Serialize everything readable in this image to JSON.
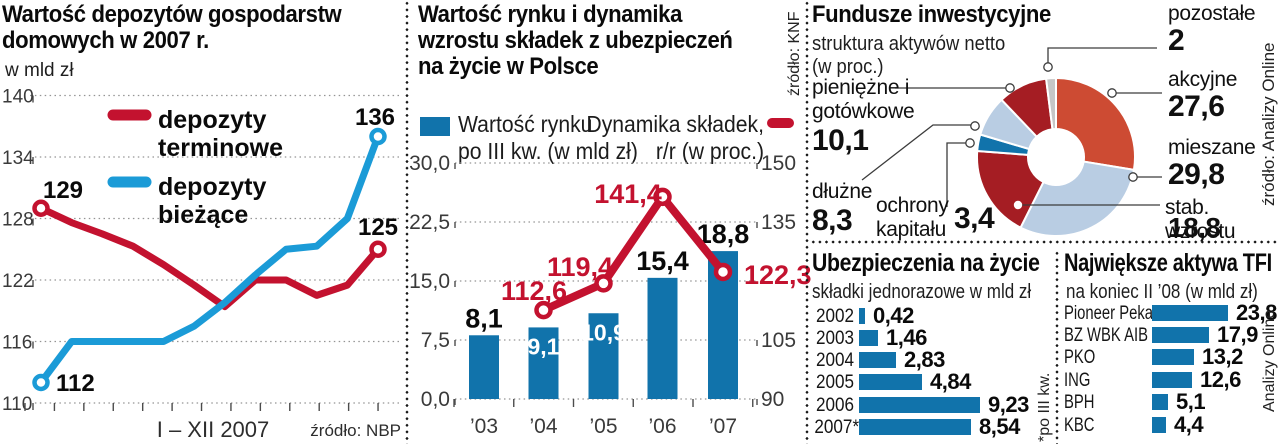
{
  "colors": {
    "red_line": "#c3122f",
    "blue_line": "#1b9bd7",
    "bar_blue": "#1173ab",
    "pie_dark_red": "#a51d23",
    "pie_orange": "#cd4b33",
    "pie_light_blue": "#b9cde3",
    "pie_gray": "#c6c6c6"
  },
  "panel_deposits": {
    "title_lines": [
      "Wartość depozytów gospodarstw",
      "domowych w 2007 r."
    ],
    "unit": "w mld zł",
    "legend": [
      [
        "depozyty",
        "terminowe"
      ],
      [
        "depozyty",
        "bieżące"
      ]
    ],
    "x_axis_label": "I – XII 2007",
    "source": "źródło: NBP"
  },
  "panel_insurance": {
    "title_lines": [
      "Wartość rynku i dynamika",
      "wzrostu składek z ubezpieczeń",
      "na życie w Polsce"
    ],
    "legend_bar_lines": [
      "Wartość rynku",
      "po III kw. (w mld zł)"
    ],
    "legend_line_lines": [
      "Dynamika składek,",
      "r/r (w proc.)"
    ],
    "source": "źródło: KNF"
  },
  "panel_funds": {
    "title": "Fundusze inwestycyjne",
    "subtitle_lines": [
      "struktura aktywów netto",
      "(w proc.)"
    ],
    "source": "źródło: Analizy Online"
  },
  "panel_life": {
    "title": "Ubezpieczenia na życie",
    "subtitle": "składki jednorazowe w mld zł",
    "footnote": "*po III kw."
  },
  "panel_tfi": {
    "title": "Największe aktywa TFI",
    "subtitle": "na koniec II ’08 (w mld zł)",
    "source": "Analizy Online"
  },
  "chart_data": [
    {
      "type": "line",
      "title": "Wartość depozytów gospodarstw domowych w 2007 r.",
      "ylabel": "w mld zł",
      "x_axis_label": "I – XII 2007",
      "source": "źródło: NBP",
      "ylim": [
        110,
        140
      ],
      "yticks": [
        110,
        116,
        122,
        128,
        134,
        140
      ],
      "x_count": 12,
      "grid": true,
      "series": [
        {
          "name": "depozyty terminowe",
          "color": "#c3122f",
          "values": [
            129,
            127.6,
            126.5,
            125.3,
            123.5,
            121.5,
            119.4,
            122,
            122,
            120.5,
            121.5,
            125
          ],
          "first_label": "129",
          "last_label": "125"
        },
        {
          "name": "depozyty bieżące",
          "color": "#1b9bd7",
          "values": [
            112,
            116,
            116,
            116,
            116,
            117.5,
            119.8,
            122.5,
            125,
            125.3,
            128,
            136
          ],
          "first_label": "112",
          "last_label": "136"
        }
      ]
    },
    {
      "type": "bar+line",
      "title": "Wartość rynku i dynamika wzrostu składek z ubezpieczeń na życie w Polsce",
      "source": "źródło: KNF",
      "categories": [
        "’03",
        "’04",
        "’05",
        "’06",
        "’07"
      ],
      "bars": {
        "name": "Wartość rynku po III kw. (w mld zł)",
        "color": "#1173ab",
        "values": [
          8.1,
          9.1,
          10.9,
          15.4,
          18.8
        ],
        "labels": [
          "8,1",
          "9,1",
          "10,9",
          "15,4",
          "18,8"
        ],
        "label_inside": [
          false,
          true,
          true,
          false,
          false
        ]
      },
      "line": {
        "name": "Dynamika składek, r/r (w proc.)",
        "color": "#c3122f",
        "x_index": [
          1,
          2,
          3,
          4
        ],
        "values": [
          112.6,
          119.4,
          141.4,
          122.3
        ],
        "labels": [
          "112,6",
          "119,4",
          "141,4",
          "122,3"
        ]
      },
      "left_axis": {
        "lim": [
          0,
          30
        ],
        "ticks": [
          {
            "v": 0,
            "t": "0,0"
          },
          {
            "v": 7.5,
            "t": "7,5"
          },
          {
            "v": 15,
            "t": "15,0"
          },
          {
            "v": 22.5,
            "t": "22,5"
          },
          {
            "v": 30,
            "t": "30,0"
          }
        ]
      },
      "right_axis": {
        "lim": [
          90,
          150
        ],
        "ticks": [
          {
            "v": 90,
            "t": "90"
          },
          {
            "v": 105,
            "t": "105"
          },
          {
            "v": 135,
            "t": "135"
          },
          {
            "v": 150,
            "t": "150"
          }
        ]
      }
    },
    {
      "type": "pie",
      "title": "Fundusze inwestycyjne",
      "subtitle": "struktura aktywów netto (w proc.)",
      "source": "źródło: Analizy Online",
      "donut": true,
      "start_angle_deg": 0,
      "clockwise": true,
      "segments": [
        {
          "label": "akcyjne",
          "value": 27.6,
          "value_label": "27,6",
          "color": "#cd4b33"
        },
        {
          "label": "mieszane",
          "value": 29.8,
          "value_label": "29,8",
          "color": "#b9cde3"
        },
        {
          "label": "stab. wzrostu",
          "value": 18.8,
          "value_label": "18,8",
          "color": "#a51d23"
        },
        {
          "label": "ochrony kapitału",
          "value": 3.4,
          "value_label": "3,4",
          "color": "#1173ab"
        },
        {
          "label": "dłużne",
          "value": 8.3,
          "value_label": "8,3",
          "color": "#b9cde3"
        },
        {
          "label": "pieniężne i gotówkowe",
          "value": 10.1,
          "value_label": "10,1",
          "color": "#a51d23"
        },
        {
          "label": "pozostałe",
          "value": 2.0,
          "value_label": "2",
          "color": "#c6c6c6"
        }
      ]
    },
    {
      "type": "bar",
      "orientation": "horizontal",
      "title": "Ubezpieczenia na życie",
      "subtitle": "składki jednorazowe w mld zł",
      "footnote": "*po III kw.",
      "color": "#1173ab",
      "categories": [
        "2002",
        "2003",
        "2004",
        "2005",
        "2006",
        "2007*"
      ],
      "values": [
        0.42,
        1.46,
        2.83,
        4.84,
        9.23,
        8.54
      ],
      "value_labels": [
        "0,42",
        "1,46",
        "2,83",
        "4,84",
        "9,23",
        "8,54"
      ]
    },
    {
      "type": "bar",
      "orientation": "horizontal",
      "title": "Największe aktywa TFI",
      "subtitle": "na koniec II ’08 (w mld zł)",
      "source": "Analizy Online",
      "color": "#1173ab",
      "categories": [
        "Pioneer Pekao",
        "BZ WBK AIB",
        "PKO",
        "ING",
        "BPH",
        "KBC"
      ],
      "values": [
        23.8,
        17.9,
        13.2,
        12.6,
        5.1,
        4.4
      ],
      "value_labels": [
        "23,8",
        "17,9",
        "13,2",
        "12,6",
        "5,1",
        "4,4"
      ]
    }
  ]
}
